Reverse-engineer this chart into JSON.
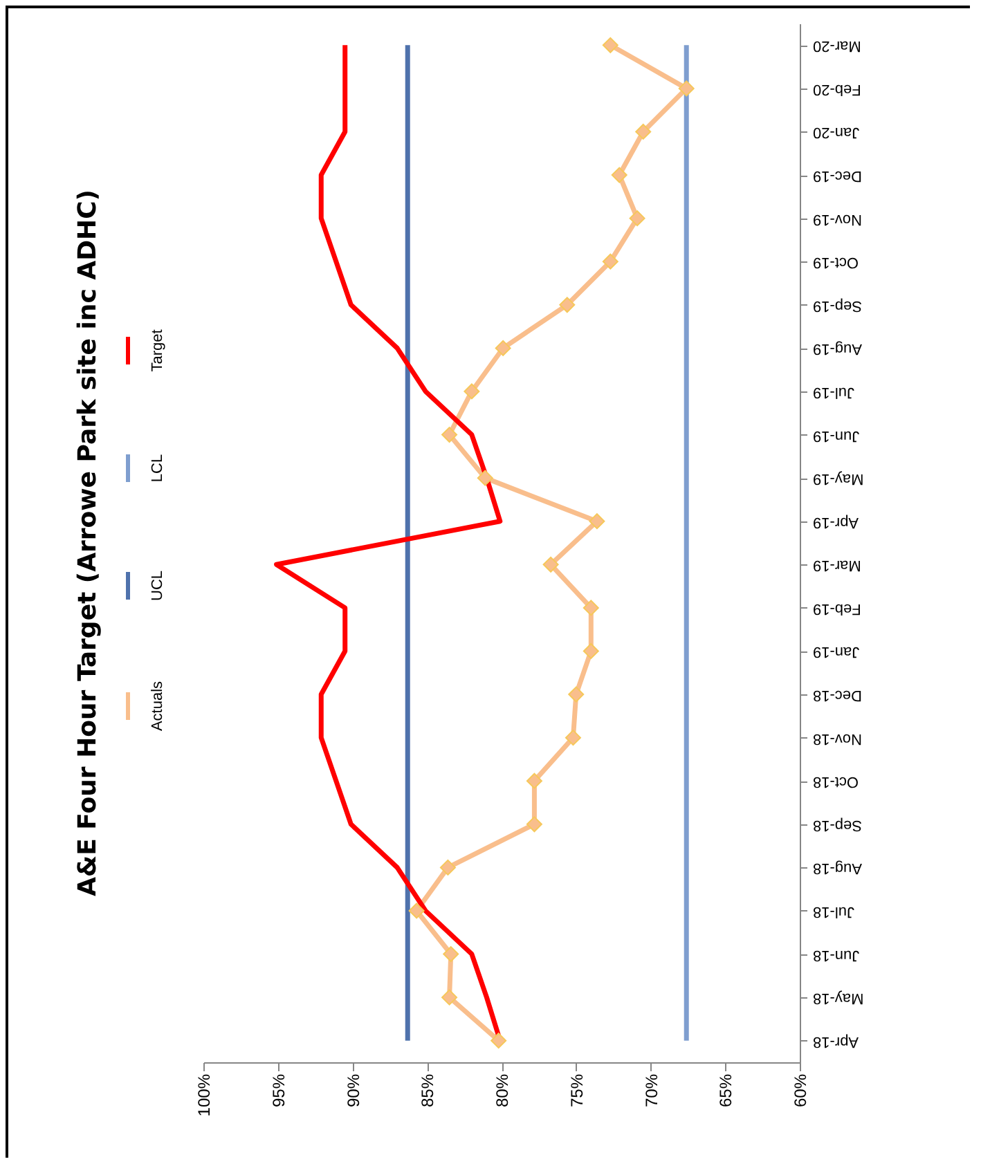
{
  "chart_data": {
    "type": "line",
    "title": "A&E Four Hour Target (Arrowe Park site inc ADHC)",
    "orientation": "horizontal",
    "categories": [
      "Mar-20",
      "Feb-20",
      "Jan-20",
      "Dec-19",
      "Nov-19",
      "Oct-19",
      "Sep-19",
      "Aug-19",
      "Jul-19",
      "Jun-19",
      "May-19",
      "Apr-19",
      "Mar-19",
      "Feb-19",
      "Jan-19",
      "Dec-18",
      "Nov-18",
      "Oct-18",
      "Sep-18",
      "Aug-18",
      "Jul-18",
      "Jun-18",
      "May-18",
      "Apr-18"
    ],
    "series": [
      {
        "name": "Actuals",
        "color": "#f9be8c",
        "marker": "diamond",
        "values": [
          72.7,
          67.6,
          70.5,
          72.1,
          70.9,
          72.7,
          75.6,
          79.9,
          82.0,
          83.5,
          81.1,
          73.6,
          76.7,
          74.0,
          74.0,
          75.0,
          75.2,
          77.8,
          77.8,
          83.6,
          85.7,
          83.4,
          83.5,
          80.2
        ]
      },
      {
        "name": "UCL",
        "color": "#4f72ac",
        "values": [
          86.3,
          86.3,
          86.3,
          86.3,
          86.3,
          86.3,
          86.3,
          86.3,
          86.3,
          86.3,
          86.3,
          86.3,
          86.3,
          86.3,
          86.3,
          86.3,
          86.3,
          86.3,
          86.3,
          86.3,
          86.3,
          86.3,
          86.3,
          86.3
        ]
      },
      {
        "name": "LCL",
        "color": "#7f9ecf",
        "values": [
          67.6,
          67.6,
          67.6,
          67.6,
          67.6,
          67.6,
          67.6,
          67.6,
          67.6,
          67.6,
          67.6,
          67.6,
          67.6,
          67.6,
          67.6,
          67.6,
          67.6,
          67.6,
          67.6,
          67.6,
          67.6,
          67.6,
          67.6,
          67.6
        ]
      },
      {
        "name": "Target",
        "color": "#ff0000",
        "values": [
          90.5,
          90.5,
          90.5,
          92.1,
          92.1,
          91.1,
          90.1,
          87.0,
          85.1,
          82.0,
          81.0,
          80.1,
          95.1,
          90.5,
          90.5,
          92.1,
          92.1,
          91.1,
          90.1,
          87.0,
          85.1,
          82.0,
          81.0,
          80.1
        ]
      }
    ],
    "xlim": [
      100,
      60
    ],
    "xticks": [
      {
        "value": 100,
        "label": "100%"
      },
      {
        "value": 95,
        "label": "95%"
      },
      {
        "value": 90,
        "label": "90%"
      },
      {
        "value": 85,
        "label": "85%"
      },
      {
        "value": 80,
        "label": "80%"
      },
      {
        "value": 75,
        "label": "75%"
      },
      {
        "value": 70,
        "label": "70%"
      },
      {
        "value": 65,
        "label": "65%"
      },
      {
        "value": 60,
        "label": "60%"
      }
    ],
    "legend": "left",
    "grid": false
  }
}
